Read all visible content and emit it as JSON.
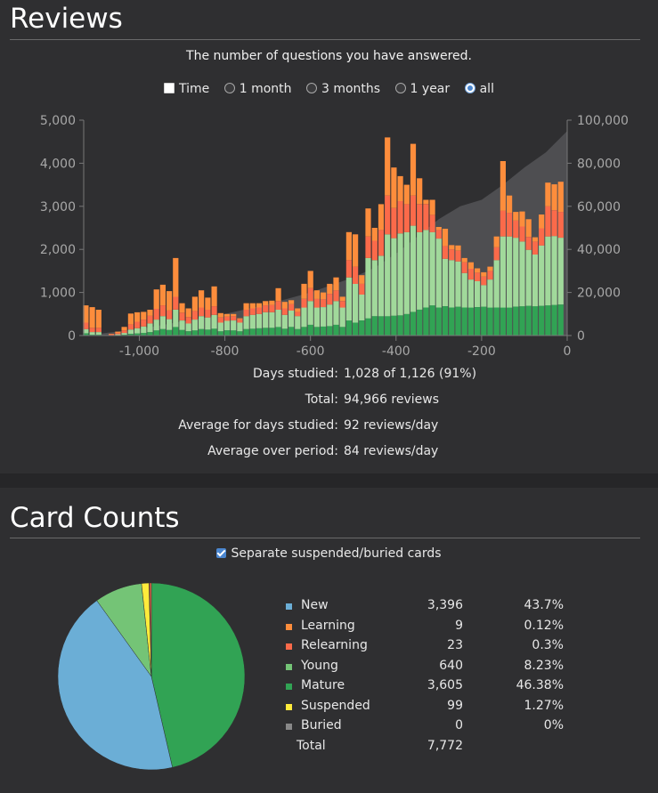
{
  "reviews": {
    "title": "Reviews",
    "subtitle": "The number of questions you have answered.",
    "time_toggle": "Time",
    "ranges": [
      {
        "label": "1 month",
        "selected": false
      },
      {
        "label": "3 months",
        "selected": false
      },
      {
        "label": "1 year",
        "selected": false
      },
      {
        "label": "all",
        "selected": true
      }
    ],
    "stats": [
      {
        "label": "Days studied:",
        "value": "1,028 of 1,126 (91%)"
      },
      {
        "label": "Total:",
        "value": "94,966 reviews"
      },
      {
        "label": "Average for days studied:",
        "value": "92 reviews/day"
      },
      {
        "label": "Average over period:",
        "value": "84 reviews/day"
      }
    ]
  },
  "chart_data": {
    "type": "bar",
    "title": "Reviews",
    "stacked": true,
    "x_ticks": [
      -1000,
      -800,
      -600,
      -400,
      -200,
      0
    ],
    "x_tick_labels": [
      "-1,000",
      "-800",
      "-600",
      "-400",
      "-200",
      "0"
    ],
    "xlim": [
      -1130,
      0
    ],
    "y_ticks": [
      0,
      1000,
      2000,
      3000,
      4000,
      5000
    ],
    "y_tick_labels": [
      "0",
      "1,000",
      "2,000",
      "3,000",
      "4,000",
      "5,000"
    ],
    "ylim": [
      0,
      5000
    ],
    "y2_ticks": [
      0,
      20000,
      40000,
      60000,
      80000,
      100000
    ],
    "y2_tick_labels": [
      "0",
      "20,000",
      "40,000",
      "60,000",
      "80,000",
      "100,000"
    ],
    "y2lim": [
      0,
      100000
    ],
    "cumulative_area": "cumulative reviews (right axis)",
    "cumulative_points": [
      [
        -1130,
        0
      ],
      [
        -1000,
        3000
      ],
      [
        -900,
        6500
      ],
      [
        -800,
        10000
      ],
      [
        -700,
        14500
      ],
      [
        -600,
        20000
      ],
      [
        -500,
        27000
      ],
      [
        -450,
        31500
      ],
      [
        -400,
        38000
      ],
      [
        -350,
        46000
      ],
      [
        -300,
        54000
      ],
      [
        -250,
        60000
      ],
      [
        -200,
        63000
      ],
      [
        -150,
        70000
      ],
      [
        -100,
        78000
      ],
      [
        -50,
        85000
      ],
      [
        0,
        94966
      ]
    ],
    "series_colors": {
      "mature": "#31a354",
      "young": "#a1d99b",
      "relearning": "#fb6a4a",
      "learning": "#fd8d3c"
    },
    "bins": [
      {
        "x": -1125,
        "mature": 50,
        "young": 100,
        "relearning": 150,
        "learning": 400
      },
      {
        "x": -1110,
        "mature": 20,
        "young": 60,
        "relearning": 100,
        "learning": 480
      },
      {
        "x": -1095,
        "mature": 20,
        "young": 60,
        "relearning": 100,
        "learning": 420
      },
      {
        "x": -1065,
        "mature": 0,
        "young": 10,
        "relearning": 20,
        "learning": 10
      },
      {
        "x": -1050,
        "mature": 10,
        "young": 20,
        "relearning": 30,
        "learning": 30
      },
      {
        "x": -1035,
        "mature": 20,
        "young": 40,
        "relearning": 60,
        "learning": 80
      },
      {
        "x": -1020,
        "mature": 40,
        "young": 100,
        "relearning": 120,
        "learning": 250
      },
      {
        "x": -1005,
        "mature": 50,
        "young": 120,
        "relearning": 150,
        "learning": 220
      },
      {
        "x": -990,
        "mature": 60,
        "young": 150,
        "relearning": 160,
        "learning": 180
      },
      {
        "x": -975,
        "mature": 80,
        "young": 200,
        "relearning": 180,
        "learning": 140
      },
      {
        "x": -960,
        "mature": 120,
        "young": 250,
        "relearning": 250,
        "learning": 450
      },
      {
        "x": -945,
        "mature": 150,
        "young": 300,
        "relearning": 250,
        "learning": 480
      },
      {
        "x": -930,
        "mature": 130,
        "young": 250,
        "relearning": 200,
        "learning": 450
      },
      {
        "x": -915,
        "mature": 200,
        "young": 400,
        "relearning": 300,
        "learning": 900
      },
      {
        "x": -900,
        "mature": 130,
        "young": 220,
        "relearning": 180,
        "learning": 220
      },
      {
        "x": -885,
        "mature": 100,
        "young": 180,
        "relearning": 150,
        "learning": 200
      },
      {
        "x": -870,
        "mature": 120,
        "young": 250,
        "relearning": 200,
        "learning": 330
      },
      {
        "x": -855,
        "mature": 150,
        "young": 300,
        "relearning": 200,
        "learning": 400
      },
      {
        "x": -840,
        "mature": 140,
        "young": 280,
        "relearning": 180,
        "learning": 280
      },
      {
        "x": -825,
        "mature": 160,
        "young": 320,
        "relearning": 200,
        "learning": 460
      },
      {
        "x": -810,
        "mature": 100,
        "young": 200,
        "relearning": 120,
        "learning": 100
      },
      {
        "x": -795,
        "mature": 120,
        "young": 220,
        "relearning": 100,
        "learning": 60
      },
      {
        "x": -780,
        "mature": 120,
        "young": 230,
        "relearning": 100,
        "learning": 50
      },
      {
        "x": -765,
        "mature": 100,
        "young": 200,
        "relearning": 80,
        "learning": 20
      },
      {
        "x": -750,
        "mature": 150,
        "young": 300,
        "relearning": 150,
        "learning": 150
      },
      {
        "x": -735,
        "mature": 160,
        "young": 320,
        "relearning": 150,
        "learning": 120
      },
      {
        "x": -720,
        "mature": 170,
        "young": 330,
        "relearning": 150,
        "learning": 100
      },
      {
        "x": -705,
        "mature": 180,
        "young": 360,
        "relearning": 160,
        "learning": 100
      },
      {
        "x": -690,
        "mature": 180,
        "young": 360,
        "relearning": 170,
        "learning": 100
      },
      {
        "x": -675,
        "mature": 200,
        "young": 400,
        "relearning": 200,
        "learning": 300
      },
      {
        "x": -660,
        "mature": 160,
        "young": 320,
        "relearning": 150,
        "learning": 150
      },
      {
        "x": -645,
        "mature": 200,
        "young": 380,
        "relearning": 150,
        "learning": 90
      },
      {
        "x": -630,
        "mature": 150,
        "young": 300,
        "relearning": 100,
        "learning": 80
      },
      {
        "x": -615,
        "mature": 200,
        "young": 450,
        "relearning": 200,
        "learning": 350
      },
      {
        "x": -600,
        "mature": 250,
        "young": 550,
        "relearning": 300,
        "learning": 400
      },
      {
        "x": -585,
        "mature": 200,
        "young": 450,
        "relearning": 200,
        "learning": 200
      },
      {
        "x": -570,
        "mature": 210,
        "young": 450,
        "relearning": 180,
        "learning": 160
      },
      {
        "x": -555,
        "mature": 220,
        "young": 500,
        "relearning": 250,
        "learning": 230
      },
      {
        "x": -540,
        "mature": 250,
        "young": 550,
        "relearning": 250,
        "learning": 300
      },
      {
        "x": -525,
        "mature": 200,
        "young": 450,
        "relearning": 150,
        "learning": 100
      },
      {
        "x": -510,
        "mature": 350,
        "young": 1000,
        "relearning": 400,
        "learning": 650
      },
      {
        "x": -495,
        "mature": 300,
        "young": 900,
        "relearning": 400,
        "learning": 750
      },
      {
        "x": -480,
        "mature": 350,
        "young": 600,
        "relearning": 250,
        "learning": 200
      },
      {
        "x": -465,
        "mature": 400,
        "young": 1400,
        "relearning": 500,
        "learning": 650
      },
      {
        "x": -450,
        "mature": 450,
        "young": 1300,
        "relearning": 450,
        "learning": 300
      },
      {
        "x": -435,
        "mature": 450,
        "young": 1400,
        "relearning": 600,
        "learning": 600
      },
      {
        "x": -420,
        "mature": 450,
        "young": 1900,
        "relearning": 900,
        "learning": 1350
      },
      {
        "x": -405,
        "mature": 460,
        "young": 1800,
        "relearning": 700,
        "learning": 940
      },
      {
        "x": -390,
        "mature": 470,
        "young": 1900,
        "relearning": 750,
        "learning": 580
      },
      {
        "x": -375,
        "mature": 500,
        "young": 1900,
        "relearning": 650,
        "learning": 450
      },
      {
        "x": -360,
        "mature": 550,
        "young": 2000,
        "relearning": 700,
        "learning": 1200
      },
      {
        "x": -345,
        "mature": 600,
        "young": 1800,
        "relearning": 650,
        "learning": 600
      },
      {
        "x": -330,
        "mature": 650,
        "young": 1800,
        "relearning": 600,
        "learning": 100
      },
      {
        "x": -315,
        "mature": 700,
        "young": 1700,
        "relearning": 400,
        "learning": 350
      },
      {
        "x": -300,
        "mature": 650,
        "young": 1600,
        "relearning": 200,
        "learning": 70
      },
      {
        "x": -285,
        "mature": 680,
        "young": 1100,
        "relearning": 300,
        "learning": 400
      },
      {
        "x": -270,
        "mature": 650,
        "young": 1100,
        "relearning": 250,
        "learning": 100
      },
      {
        "x": -255,
        "mature": 670,
        "young": 1050,
        "relearning": 250,
        "learning": 120
      },
      {
        "x": -240,
        "mature": 650,
        "young": 800,
        "relearning": 250,
        "learning": 100
      },
      {
        "x": -225,
        "mature": 650,
        "young": 650,
        "relearning": 250,
        "learning": 150
      },
      {
        "x": -210,
        "mature": 660,
        "young": 600,
        "relearning": 200,
        "learning": 100
      },
      {
        "x": -195,
        "mature": 670,
        "young": 500,
        "relearning": 200,
        "learning": 100
      },
      {
        "x": -180,
        "mature": 650,
        "young": 650,
        "relearning": 200,
        "learning": 100
      },
      {
        "x": -165,
        "mature": 650,
        "young": 1100,
        "relearning": 300,
        "learning": 250
      },
      {
        "x": -150,
        "mature": 650,
        "young": 1650,
        "relearning": 600,
        "learning": 1150
      },
      {
        "x": -135,
        "mature": 650,
        "young": 1650,
        "relearning": 550,
        "learning": 400
      },
      {
        "x": -120,
        "mature": 670,
        "young": 1600,
        "relearning": 400,
        "learning": 200
      },
      {
        "x": -105,
        "mature": 680,
        "young": 1500,
        "relearning": 350,
        "learning": 350
      },
      {
        "x": -90,
        "mature": 690,
        "young": 1300,
        "relearning": 300,
        "learning": 410
      },
      {
        "x": -75,
        "mature": 680,
        "young": 1200,
        "relearning": 300,
        "learning": 100
      },
      {
        "x": -60,
        "mature": 690,
        "young": 1400,
        "relearning": 400,
        "learning": 320
      },
      {
        "x": -45,
        "mature": 700,
        "young": 1600,
        "relearning": 700,
        "learning": 550
      },
      {
        "x": -30,
        "mature": 710,
        "young": 1600,
        "relearning": 600,
        "learning": 600
      },
      {
        "x": -15,
        "mature": 720,
        "young": 1550,
        "relearning": 600,
        "learning": 700
      }
    ]
  },
  "card_counts": {
    "title": "Card Counts",
    "separate_label": "Separate suspended/buried cards",
    "separate_checked": true,
    "legend": [
      {
        "name": "New",
        "count": "3,396",
        "pct": "43.7%",
        "value": 3396,
        "color": "#6baed6"
      },
      {
        "name": "Learning",
        "count": "9",
        "pct": "0.12%",
        "value": 9,
        "color": "#fd8d3c"
      },
      {
        "name": "Relearning",
        "count": "23",
        "pct": "0.3%",
        "value": 23,
        "color": "#fb6a4a"
      },
      {
        "name": "Young",
        "count": "640",
        "pct": "8.23%",
        "value": 640,
        "color": "#74c476"
      },
      {
        "name": "Mature",
        "count": "3,605",
        "pct": "46.38%",
        "value": 3605,
        "color": "#31a354"
      },
      {
        "name": "Suspended",
        "count": "99",
        "pct": "1.27%",
        "value": 99,
        "color": "#ffeb3b"
      },
      {
        "name": "Buried",
        "count": "0",
        "pct": "0%",
        "value": 0,
        "color": "#888888"
      }
    ],
    "total_label": "Total",
    "total_value": "7,772"
  }
}
